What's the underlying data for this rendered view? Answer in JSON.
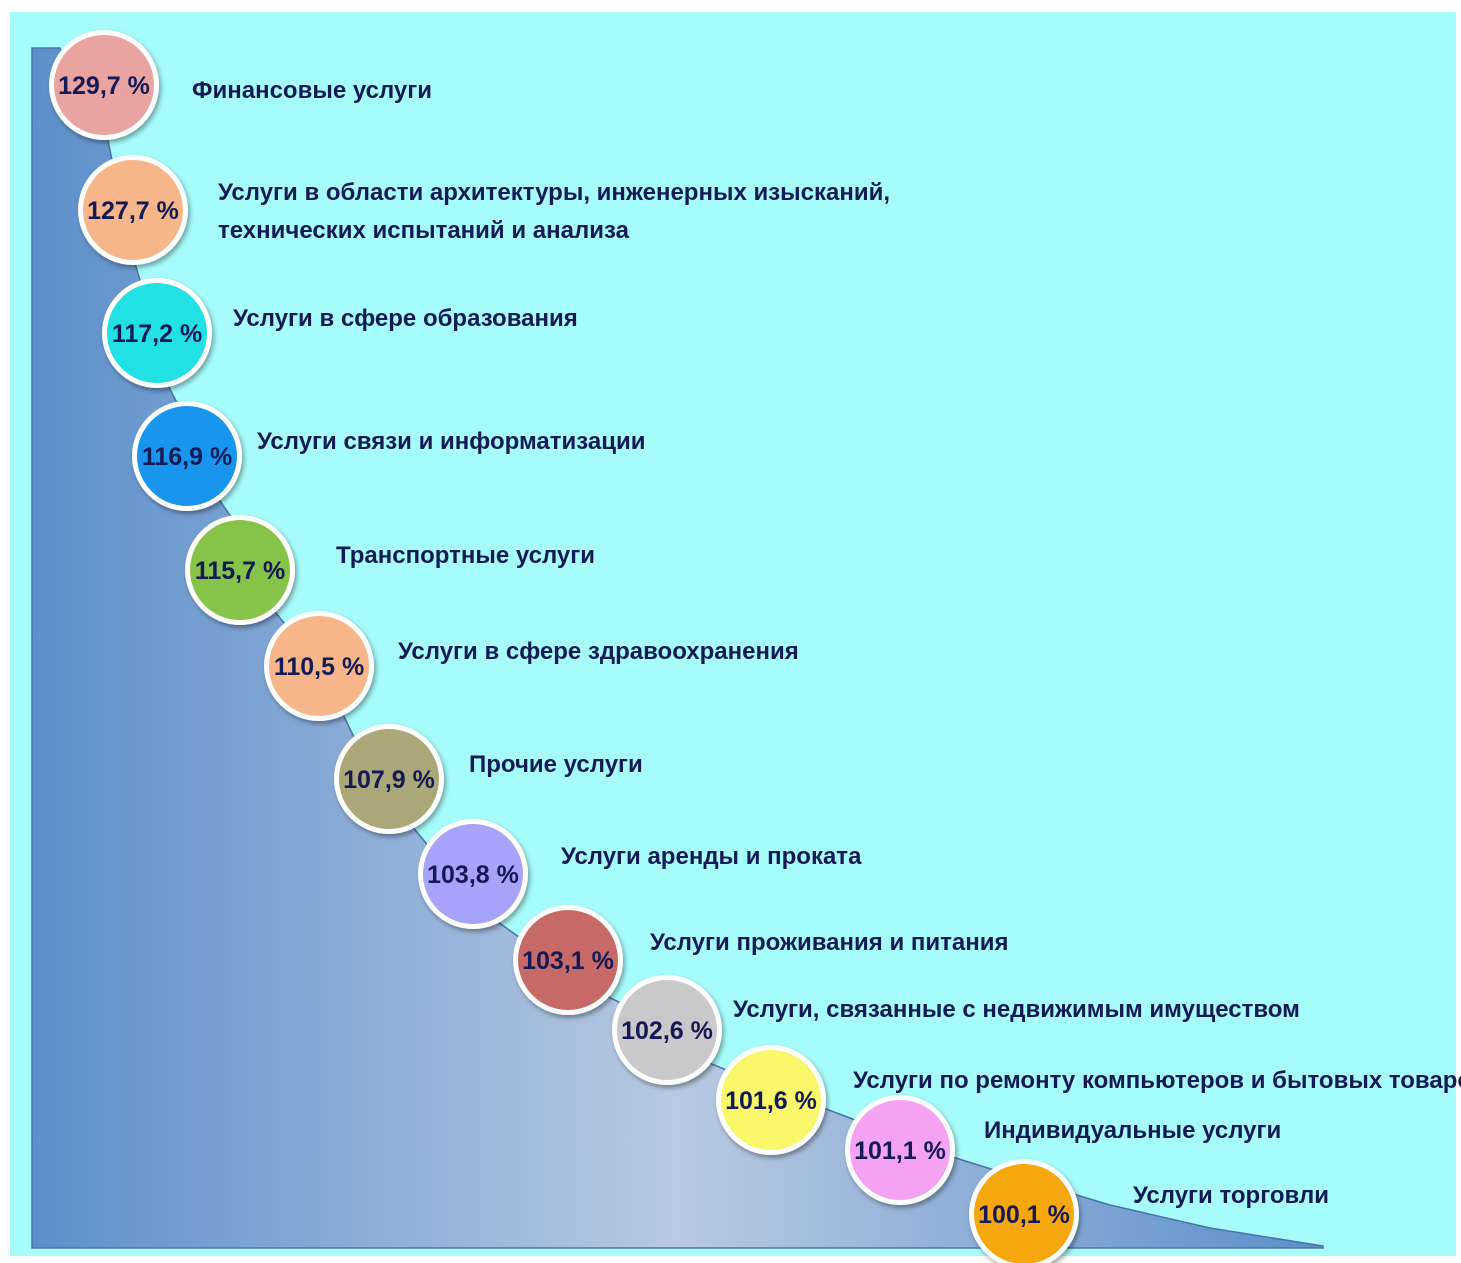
{
  "colors": {
    "background": "#a6fbfb",
    "text": "#141a55",
    "wedge_dark": "#5c8fcb",
    "wedge_light": "#b8c9e2"
  },
  "chart_data": {
    "type": "bar",
    "unit": "%",
    "series": [
      {
        "labels": [
          "129,7 %",
          "127,7 %",
          "117,2 %",
          "116,9 %",
          "115,7 %",
          "110,5 %",
          "107,9 %",
          "103,8 %",
          "103,1 %",
          "102,6 %",
          "101,6 %",
          "101,1 %",
          "100,1 %"
        ],
        "values": [
          129.7,
          127.7,
          117.2,
          116.9,
          115.7,
          110.5,
          107.9,
          103.8,
          103.1,
          102.6,
          101.6,
          101.1,
          100.1
        ]
      }
    ],
    "items": [
      {
        "value": 129.7,
        "value_label": "129,7 %",
        "lines": [
          "Финансовые услуги"
        ],
        "color": "#e9a3a0"
      },
      {
        "value": 127.7,
        "value_label": "127,7 %",
        "lines": [
          "Услуги в области архитектуры, инженерных изысканий,",
          "технических испытаний и анализа"
        ],
        "color": "#f6b689"
      },
      {
        "value": 117.2,
        "value_label": "117,2 %",
        "lines": [
          "Услуги в сфере образования"
        ],
        "color": "#22e1e5"
      },
      {
        "value": 116.9,
        "value_label": "116,9 %",
        "lines": [
          "Услуги связи и информатизации"
        ],
        "color": "#1896ed"
      },
      {
        "value": 115.7,
        "value_label": "115,7 %",
        "lines": [
          "Транспортные услуги"
        ],
        "color": "#86c349"
      },
      {
        "value": 110.5,
        "value_label": "110,5 %",
        "lines": [
          "Услуги в сфере здравоохранения"
        ],
        "color": "#f6b689"
      },
      {
        "value": 107.9,
        "value_label": "107,9 %",
        "lines": [
          "Прочие услуги"
        ],
        "color": "#aaa778"
      },
      {
        "value": 103.8,
        "value_label": "103,8 %",
        "lines": [
          "Услуги аренды и проката"
        ],
        "color": "#a7a3fb"
      },
      {
        "value": 103.1,
        "value_label": "103,1 %",
        "lines": [
          "Услуги проживания и питания"
        ],
        "color": "#c76a67"
      },
      {
        "value": 102.6,
        "value_label": "102,6 %",
        "lines": [
          "Услуги, связанные с недвижимым имуществом"
        ],
        "color": "#c9c9cb"
      },
      {
        "value": 101.6,
        "value_label": "101,6 %",
        "lines": [
          "Услуги по ремонту компьютеров и бытовых товаров"
        ],
        "color": "#f8f86a"
      },
      {
        "value": 101.1,
        "value_label": "101,1 %",
        "lines": [
          "Индивидуальные услуги"
        ],
        "color": "#f6a2f3"
      },
      {
        "value": 100.1,
        "value_label": "100,1 %",
        "lines": [
          "Услуги торговли"
        ],
        "color": "#f6a70d"
      }
    ]
  }
}
